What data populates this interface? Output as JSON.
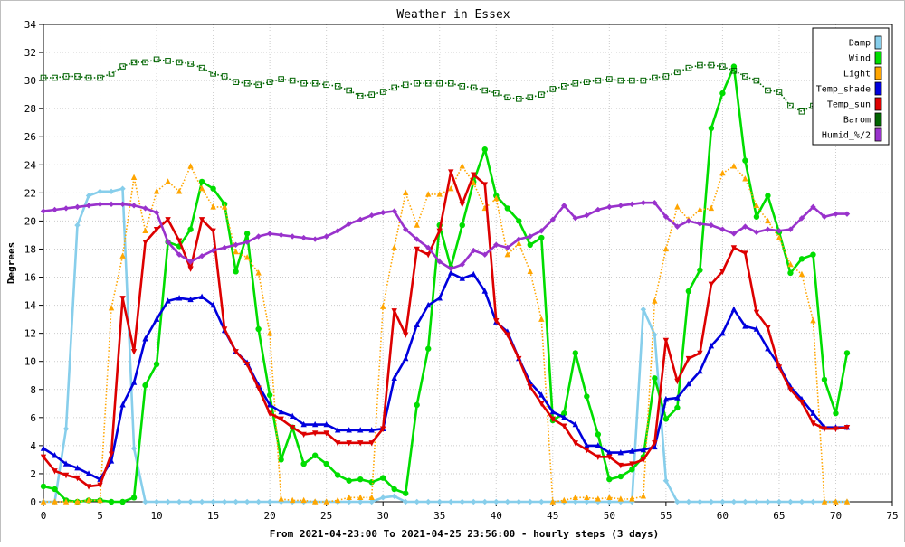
{
  "chart_data": {
    "type": "line",
    "title": "Weather in Essex",
    "xlabel": "From 2021-04-23:00 To 2021-04-25 23:56:00 - hourly steps (3 days)",
    "ylabel": "Degrees",
    "xlim": [
      0,
      75
    ],
    "ylim": [
      0,
      34
    ],
    "xticks": [
      0,
      5,
      10,
      15,
      20,
      25,
      30,
      35,
      40,
      45,
      50,
      55,
      60,
      65,
      70,
      75
    ],
    "yticks": [
      0,
      2,
      4,
      6,
      8,
      10,
      12,
      14,
      16,
      18,
      20,
      22,
      24,
      26,
      28,
      30,
      32,
      34
    ],
    "grid": true,
    "legend_position": "top-right",
    "x": [
      0,
      1,
      2,
      3,
      4,
      5,
      6,
      7,
      8,
      9,
      10,
      11,
      12,
      13,
      14,
      15,
      16,
      17,
      18,
      19,
      20,
      21,
      22,
      23,
      24,
      25,
      26,
      27,
      28,
      29,
      30,
      31,
      32,
      33,
      34,
      35,
      36,
      37,
      38,
      39,
      40,
      41,
      42,
      43,
      44,
      45,
      46,
      47,
      48,
      49,
      50,
      51,
      52,
      53,
      54,
      55,
      56,
      57,
      58,
      59,
      60,
      61,
      62,
      63,
      64,
      65,
      66,
      67,
      68,
      69,
      70,
      71
    ],
    "series": [
      {
        "name": "Damp",
        "color": "#87ceeb",
        "marker": "diamond",
        "style": "solid",
        "values": [
          0,
          0,
          5.2,
          19.7,
          21.8,
          22.1,
          22.1,
          22.3,
          3.8,
          0,
          0,
          0,
          0,
          0,
          0,
          0,
          0,
          0,
          0,
          0,
          0,
          0,
          0,
          0,
          0,
          0,
          0,
          0,
          0,
          0,
          0.3,
          0.4,
          0,
          0,
          0,
          0,
          0,
          0,
          0,
          0,
          0,
          0,
          0,
          0,
          0,
          0,
          0,
          0,
          0,
          0,
          0,
          0,
          0,
          13.7,
          11.9,
          1.5,
          0,
          0,
          0,
          0,
          0,
          0,
          0,
          0,
          0,
          0,
          0,
          0,
          0,
          0,
          0,
          0
        ]
      },
      {
        "name": "Wind",
        "color": "#00dd00",
        "marker": "circle",
        "style": "solid",
        "values": [
          1.1,
          0.9,
          0.1,
          0,
          0.1,
          0.1,
          0,
          0,
          0.3,
          8.3,
          9.8,
          18.5,
          18.2,
          19.4,
          22.8,
          22.3,
          21.2,
          16.4,
          19.1,
          12.3,
          7.6,
          3.0,
          5.3,
          2.7,
          3.3,
          2.7,
          1.9,
          1.5,
          1.6,
          1.4,
          1.7,
          0.9,
          0.6,
          6.9,
          10.9,
          19.7,
          16.7,
          19.7,
          22.8,
          25.1,
          21.8,
          20.9,
          20.0,
          18.3,
          18.8,
          5.8,
          6.3,
          10.6,
          7.5,
          4.8,
          1.6,
          1.8,
          2.3,
          3.2,
          8.8,
          5.9,
          6.7,
          15.0,
          16.5,
          26.6,
          29.1,
          31.0,
          24.3,
          20.3,
          21.8,
          19.2,
          16.3,
          17.3,
          17.6,
          8.7,
          6.3,
          10.6
        ]
      },
      {
        "name": "Light",
        "color": "#ffa500",
        "marker": "triangle-up",
        "style": "dotted",
        "values": [
          0,
          0,
          0,
          0,
          0.1,
          0.1,
          13.8,
          17.5,
          23.1,
          19.3,
          22.1,
          22.8,
          22.1,
          23.9,
          22.3,
          21.0,
          21.0,
          17.8,
          17.4,
          16.3,
          12.0,
          0.2,
          0.1,
          0.1,
          0,
          0,
          0.1,
          0.3,
          0.3,
          0.3,
          13.9,
          18.1,
          22.0,
          19.7,
          21.9,
          21.9,
          22.3,
          23.9,
          22.7,
          20.9,
          21.6,
          17.6,
          18.4,
          16.4,
          13.0,
          0,
          0.1,
          0.3,
          0.3,
          0.2,
          0.3,
          0.2,
          0.2,
          0.4,
          14.3,
          18.0,
          21.0,
          20.1,
          20.8,
          20.9,
          23.4,
          23.9,
          23.0,
          21.1,
          20.0,
          18.8,
          16.9,
          16.2,
          12.9,
          0,
          0,
          0
        ]
      },
      {
        "name": "Temp_shade",
        "color": "#0000dd",
        "marker": "triangle-up",
        "style": "solid",
        "values": [
          3.8,
          3.3,
          2.7,
          2.4,
          2.0,
          1.6,
          2.9,
          6.9,
          8.5,
          11.6,
          13.0,
          14.3,
          14.5,
          14.4,
          14.6,
          14.0,
          12.2,
          10.7,
          9.9,
          8.3,
          6.9,
          6.4,
          6.1,
          5.5,
          5.5,
          5.5,
          5.1,
          5.1,
          5.1,
          5.1,
          5.2,
          8.8,
          10.2,
          12.6,
          14.0,
          14.5,
          16.3,
          15.9,
          16.2,
          15.0,
          12.8,
          12.1,
          10.2,
          8.5,
          7.6,
          6.4,
          6.0,
          5.5,
          4.0,
          4.0,
          3.5,
          3.5,
          3.6,
          3.7,
          3.9,
          7.3,
          7.4,
          8.4,
          9.3,
          11.1,
          12.0,
          13.7,
          12.5,
          12.3,
          10.9,
          9.7,
          8.2,
          7.3,
          6.3,
          5.3,
          5.3,
          5.3
        ]
      },
      {
        "name": "Temp_sun",
        "color": "#dd0000",
        "marker": "triangle-down",
        "style": "solid",
        "values": [
          3.2,
          2.2,
          1.9,
          1.7,
          1.1,
          1.2,
          3.4,
          14.5,
          10.7,
          18.5,
          19.4,
          20.1,
          18.6,
          16.6,
          20.1,
          19.3,
          12.3,
          10.7,
          9.8,
          8.1,
          6.3,
          5.9,
          5.3,
          4.8,
          4.9,
          4.9,
          4.2,
          4.2,
          4.2,
          4.2,
          5.2,
          13.6,
          11.9,
          18.0,
          17.6,
          19.3,
          23.5,
          21.2,
          23.3,
          22.6,
          12.9,
          11.9,
          10.2,
          8.2,
          7.0,
          5.9,
          5.4,
          4.2,
          3.7,
          3.2,
          3.2,
          2.6,
          2.7,
          3.0,
          4.2,
          11.5,
          8.6,
          10.2,
          10.6,
          15.5,
          16.4,
          18.1,
          17.7,
          13.5,
          12.4,
          9.6,
          8.0,
          7.1,
          5.6,
          5.2,
          5.2,
          5.3
        ]
      },
      {
        "name": "Barom",
        "color": "#006400",
        "marker": "square",
        "style": "dotted",
        "values": [
          30.2,
          30.2,
          30.3,
          30.3,
          30.2,
          30.2,
          30.5,
          31.0,
          31.3,
          31.3,
          31.5,
          31.4,
          31.3,
          31.2,
          30.9,
          30.5,
          30.3,
          29.9,
          29.8,
          29.7,
          29.9,
          30.1,
          30.0,
          29.8,
          29.8,
          29.7,
          29.6,
          29.3,
          28.9,
          29.0,
          29.2,
          29.5,
          29.7,
          29.8,
          29.8,
          29.8,
          29.8,
          29.6,
          29.5,
          29.3,
          29.1,
          28.8,
          28.7,
          28.8,
          29.0,
          29.4,
          29.6,
          29.8,
          29.9,
          30.0,
          30.1,
          30.0,
          30.0,
          30.0,
          30.2,
          30.3,
          30.6,
          30.9,
          31.1,
          31.1,
          31.0,
          30.7,
          30.3,
          30.0,
          29.3,
          29.2,
          28.2,
          27.8,
          28.2,
          null,
          null,
          null
        ]
      },
      {
        "name": "Humid_%/2",
        "color": "#9932cc",
        "marker": "diamond",
        "style": "solid",
        "values": [
          20.7,
          20.8,
          20.9,
          21.0,
          21.1,
          21.2,
          21.2,
          21.2,
          21.1,
          20.9,
          20.6,
          18.5,
          17.6,
          17.1,
          17.5,
          17.9,
          18.1,
          18.3,
          18.5,
          18.9,
          19.1,
          19.0,
          18.9,
          18.8,
          18.7,
          18.9,
          19.3,
          19.8,
          20.1,
          20.4,
          20.6,
          20.7,
          19.4,
          18.7,
          18.1,
          17.1,
          16.6,
          16.9,
          17.9,
          17.6,
          18.3,
          18.1,
          18.7,
          18.9,
          19.3,
          20.1,
          21.1,
          20.2,
          20.4,
          20.8,
          21.0,
          21.1,
          21.2,
          21.3,
          21.3,
          20.3,
          19.6,
          20.0,
          19.8,
          19.7,
          19.4,
          19.1,
          19.6,
          19.2,
          19.4,
          19.3,
          19.4,
          20.2,
          21.0,
          20.3,
          20.5,
          20.5
        ]
      }
    ]
  }
}
